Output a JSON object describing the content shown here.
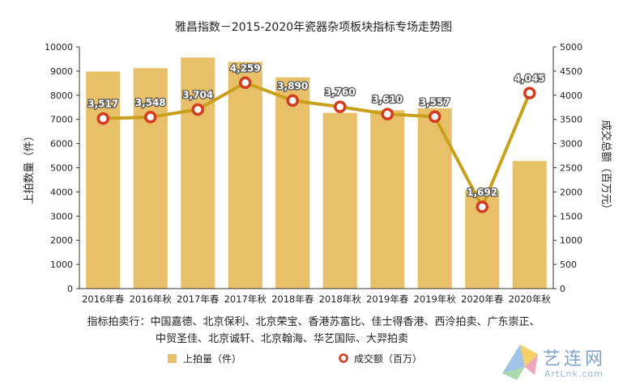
{
  "chart_data": {
    "type": "bar+line",
    "title": "雅昌指数－2015-2020年瓷器杂项板块指标专场走势图",
    "categories": [
      "2016年春",
      "2016年秋",
      "2017年春",
      "2017年秋",
      "2018年春",
      "2018年秋",
      "2019年春",
      "2019年秋",
      "2020年春",
      "2020年秋"
    ],
    "series": [
      {
        "name": "上拍量（件）",
        "type": "bar",
        "axis": "left",
        "color": "#e8c06a",
        "values": [
          8980,
          9120,
          9560,
          9380,
          8740,
          7270,
          7380,
          7460,
          4060,
          5280
        ]
      },
      {
        "name": "成交额（百万）",
        "type": "line",
        "axis": "right",
        "color": "#c9a01c",
        "marker_color": "#d33a1e",
        "values": [
          3517,
          3548,
          3704,
          4259,
          3890,
          3760,
          3610,
          3557,
          1692,
          4045
        ],
        "labels": [
          "3,517",
          "3,548",
          "3,704",
          "4,259",
          "3,890",
          "3,760",
          "3,610",
          "3,557",
          "1,692",
          "4,045"
        ]
      }
    ],
    "y_left": {
      "label": "上拍数量（件）",
      "min": 0,
      "max": 10000,
      "ticks": [
        "0",
        "1000",
        "2000",
        "3000",
        "4000",
        "5000",
        "6000",
        "7000",
        "8000",
        "9000",
        "10000"
      ]
    },
    "y_right": {
      "label": "成交总额（百万元）",
      "min": 0,
      "max": 5000,
      "ticks": [
        "0",
        "500",
        "1000",
        "1500",
        "2000",
        "2500",
        "3000",
        "3500",
        "4000",
        "4500",
        "5000"
      ]
    },
    "grid": false,
    "annotation_line1": "指标拍卖行：中国嘉德、北京保利、北京荣宝、香港苏富比、佳士得香港、西泠拍卖、广东崇正、",
    "annotation_line2": "中贸圣佳、北京诚轩、北京翰海、华艺国际、大羿拍卖",
    "legend_position": "bottom"
  },
  "watermark": {
    "text_cn": "艺连网",
    "text_en": "ArtLnk.com"
  }
}
